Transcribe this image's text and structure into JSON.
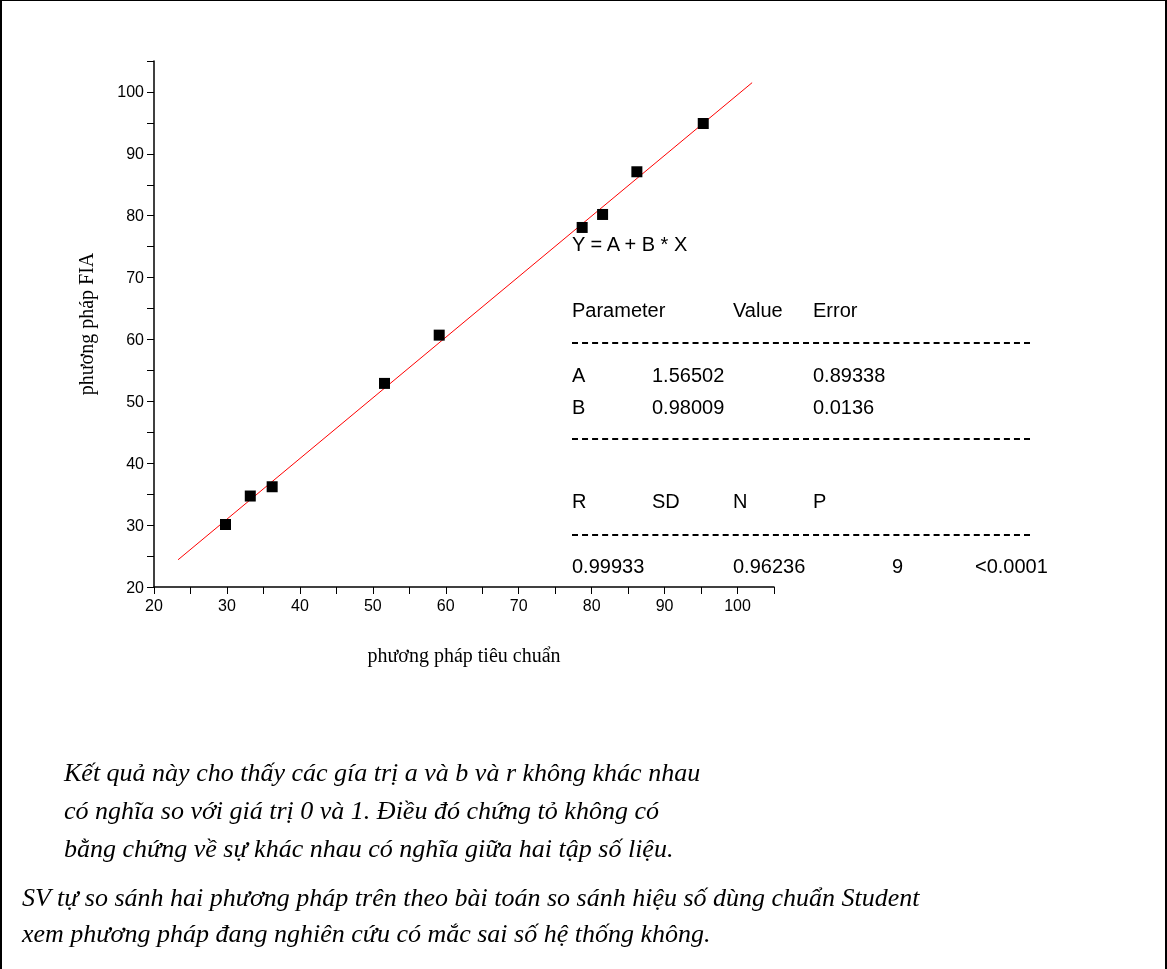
{
  "chart_data": {
    "type": "scatter",
    "xlabel": "phương pháp tiêu chuẩn",
    "ylabel": "phương pháp FIA",
    "xlim": [
      20,
      105
    ],
    "ylim": [
      20,
      105
    ],
    "xticks": [
      20,
      {
        "value": 25,
        "label": null
      },
      30,
      {
        "value": 35,
        "label": null
      },
      40,
      {
        "value": 45,
        "label": null
      },
      50,
      {
        "value": 55,
        "label": null
      },
      60,
      {
        "value": 65,
        "label": null
      },
      70,
      {
        "value": 75,
        "label": null
      },
      80,
      {
        "value": 85,
        "label": null
      },
      90,
      {
        "value": 95,
        "label": null
      },
      100,
      {
        "value": 105,
        "label": null
      }
    ],
    "yticks": [
      20,
      {
        "value": 25,
        "label": null
      },
      30,
      {
        "value": 35,
        "label": null
      },
      40,
      {
        "value": 45,
        "label": null
      },
      50,
      {
        "value": 55,
        "label": null
      },
      60,
      {
        "value": 65,
        "label": null
      },
      70,
      {
        "value": 75,
        "label": null
      },
      80,
      {
        "value": 85,
        "label": null
      },
      90,
      {
        "value": 95,
        "label": null
      },
      100,
      {
        "value": 105,
        "label": null
      }
    ],
    "series": [
      {
        "color": "#000000",
        "marker": "square",
        "x": [
          29.8,
          33.2,
          36.2,
          51.6,
          59.1,
          78.7,
          81.5,
          86.2,
          95.3
        ],
        "values": [
          30.1,
          34.7,
          36.2,
          52.9,
          60.7,
          78.1,
          80.2,
          87.1,
          94.9
        ]
      },
      {
        "type": "line",
        "color": "#ff0000",
        "marker": "none",
        "x": [
          23.3,
          102
        ],
        "values": [
          24.4,
          101.5
        ]
      }
    ],
    "annotations": [
      "Y = A + B * X",
      "Parameter",
      "Value",
      "Error",
      "A",
      "1.56502",
      "0.89338",
      "B",
      "0.98009",
      "0.0136",
      "R",
      "SD",
      "N",
      "P",
      "0.99933",
      "0.96236",
      "9",
      "<0.0001",
      "Kết quả này cho thấy các gía trị a và b và r không khác nhau",
      "có nghĩa so với giá trị 0 và 1. Điều đó chứng tỏ không có",
      "bằng chứng về sự khác nhau có nghĩa giữa hai tập số liệu.",
      "SV tự so sánh hai phương pháp trên theo bài toán so sánh hiệu số dùng chuẩn Student",
      "xem phương pháp đang nghiên cứu có mắc sai số hệ thống không."
    ]
  }
}
